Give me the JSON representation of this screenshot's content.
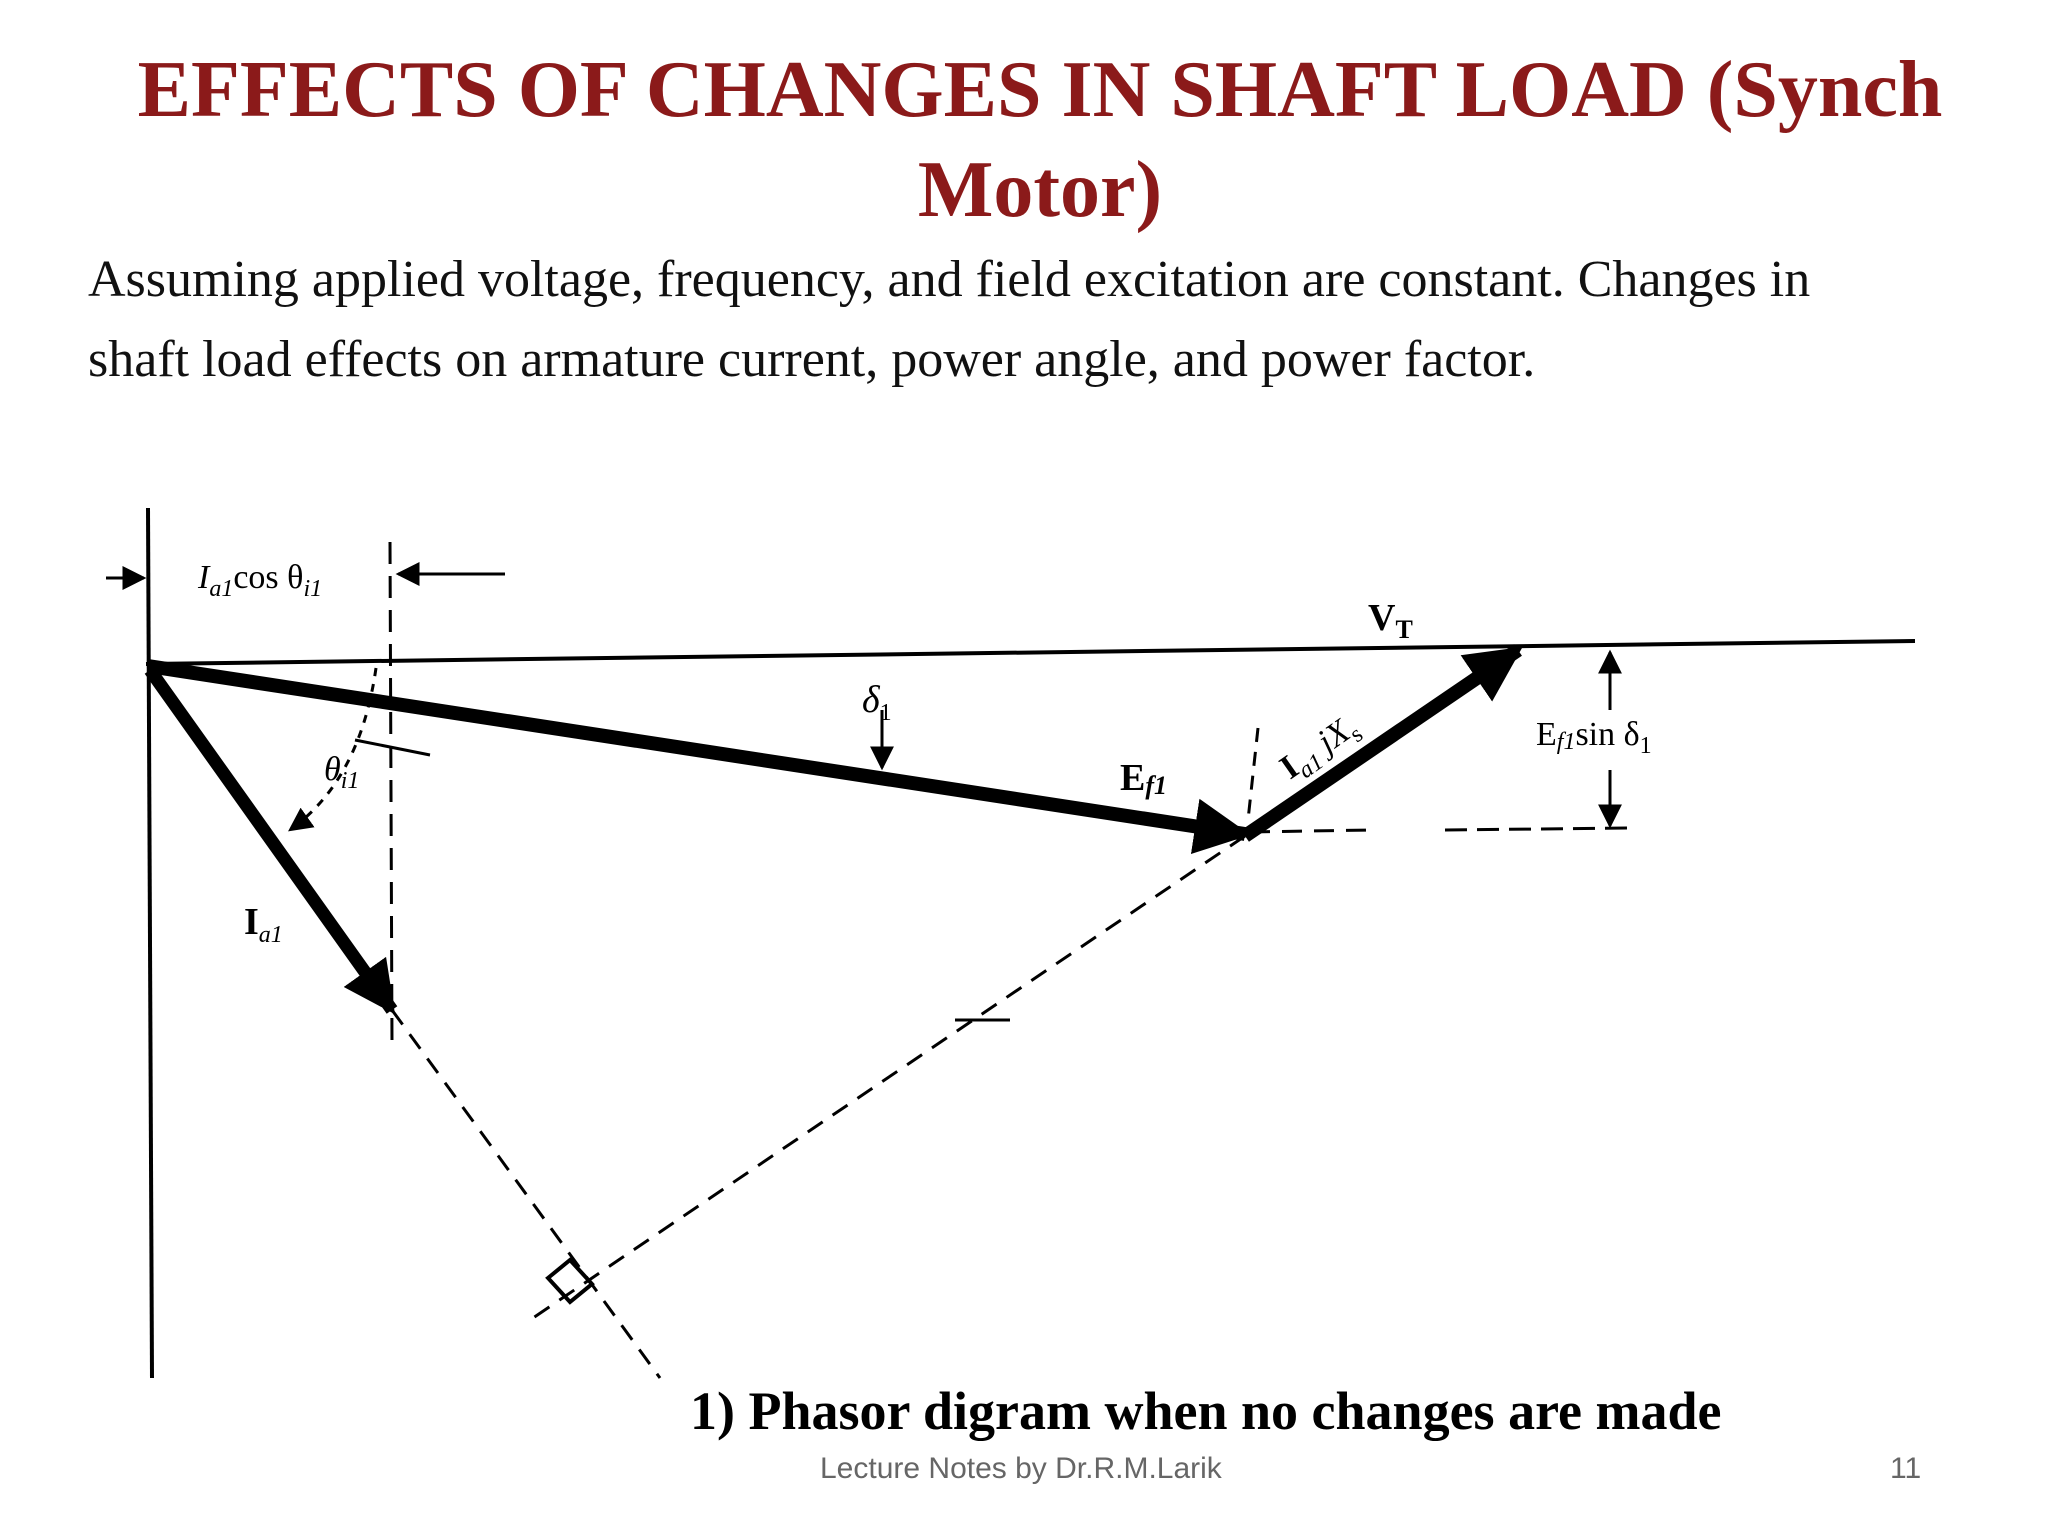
{
  "slide": {
    "title_line1": "EFFECTS OF CHANGES IN SHAFT LOAD (Synch",
    "title_line2": "Motor)",
    "intro_line1": "Assuming applied voltage, frequency, and field excitation are constant. Changes in",
    "intro_line2": "shaft load effects on armature current, power angle, and power factor.",
    "caption": "1) Phasor digram when no changes are made",
    "footer": "Lecture Notes by Dr.R.M.Larik",
    "page_number": "11"
  },
  "diagram": {
    "labels": {
      "ia_cos_I": "I",
      "ia_cos_sub": "a1",
      "ia_cos_rest": "cos θ",
      "ia_cos_sub2": "i1",
      "vt_main": "V",
      "vt_sub": "T",
      "delta_main": "δ",
      "delta_sub": "1",
      "theta_main": "θ",
      "theta_sub": "i1",
      "ef_main": "E",
      "ef_sub": "f1",
      "ia_main": "I",
      "ia_sub": "a1",
      "iajxs_main": "I",
      "iajxs_sub": "a1",
      "iajxs_rest": " jX",
      "iajxs_sub2": "s",
      "efsin_main": "E",
      "efsin_sub": "f1",
      "efsin_rest": "sin δ",
      "efsin_sub2": "1"
    }
  }
}
